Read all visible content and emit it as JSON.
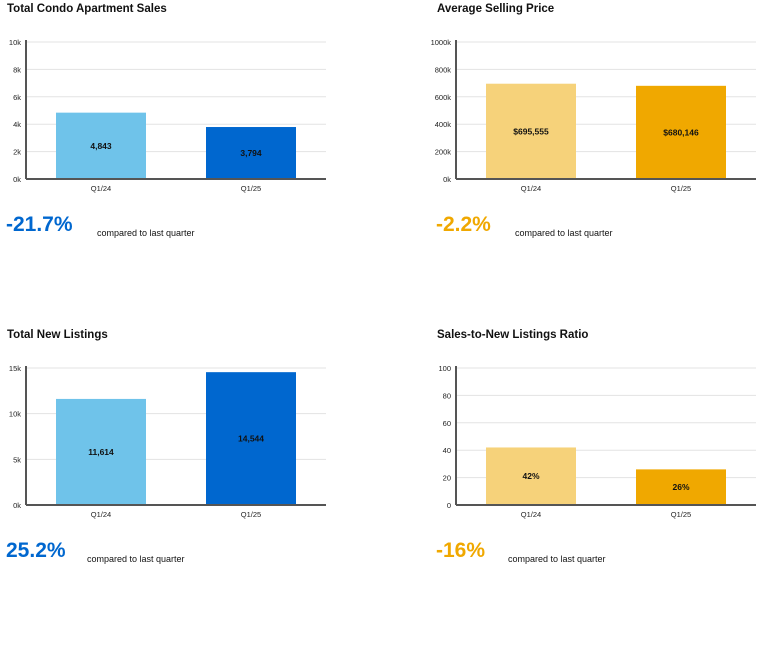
{
  "colors": {
    "blue_light": "#6fc3ea",
    "blue_dark": "#0067cf",
    "gold_light": "#f6d27a",
    "gold_dark": "#f0a800",
    "change_blue": "#0067cf",
    "change_gold": "#f0a800",
    "grid": "#e3e3e3",
    "axis": "#555555"
  },
  "panels": [
    {
      "title": "Total Condo Apartment Sales",
      "change": "-21.7%",
      "compare_text": "compared to last quarter",
      "change_color": "blue"
    },
    {
      "title": "Average Selling Price",
      "change": "-2.2%",
      "compare_text": "compared to last quarter",
      "change_color": "gold"
    },
    {
      "title": "Total New Listings",
      "change": "25.2%",
      "compare_text": "compared to last quarter",
      "change_color": "blue"
    },
    {
      "title": "Sales-to-New Listings Ratio",
      "change": "-16%",
      "compare_text": "compared to last quarter",
      "change_color": "gold"
    }
  ],
  "chart_data": [
    {
      "type": "bar",
      "title": "Total Condo Apartment Sales",
      "categories": [
        "Q1/24",
        "Q1/25"
      ],
      "values": [
        4843,
        3794
      ],
      "value_labels": [
        "4,843",
        "3,794"
      ],
      "ylim": [
        0,
        10000
      ],
      "yticks": [
        0,
        2000,
        4000,
        6000,
        8000,
        10000
      ],
      "ytick_labels": [
        "0k",
        "2k",
        "4k",
        "6k",
        "8k",
        "10k"
      ],
      "bar_colors": [
        "#6fc3ea",
        "#0067cf"
      ],
      "grid": true
    },
    {
      "type": "bar",
      "title": "Average Selling Price",
      "categories": [
        "Q1/24",
        "Q1/25"
      ],
      "values": [
        695555,
        680146
      ],
      "value_labels": [
        "$695,555",
        "$680,146"
      ],
      "ylim": [
        0,
        1000000
      ],
      "yticks": [
        0,
        200000,
        400000,
        600000,
        800000,
        1000000
      ],
      "ytick_labels": [
        "0k",
        "200k",
        "400k",
        "600k",
        "800k",
        "1000k"
      ],
      "bar_colors": [
        "#f6d27a",
        "#f0a800"
      ],
      "grid": true
    },
    {
      "type": "bar",
      "title": "Total New Listings",
      "categories": [
        "Q1/24",
        "Q1/25"
      ],
      "values": [
        11614,
        14544
      ],
      "value_labels": [
        "11,614",
        "14,544"
      ],
      "ylim": [
        0,
        15000
      ],
      "yticks": [
        0,
        5000,
        10000,
        15000
      ],
      "ytick_labels": [
        "0k",
        "5k",
        "10k",
        "15k"
      ],
      "bar_colors": [
        "#6fc3ea",
        "#0067cf"
      ],
      "grid": true
    },
    {
      "type": "bar",
      "title": "Sales-to-New Listings Ratio",
      "categories": [
        "Q1/24",
        "Q1/25"
      ],
      "values": [
        42,
        26
      ],
      "value_labels": [
        "42%",
        "26%"
      ],
      "ylim": [
        0,
        100
      ],
      "yticks": [
        0,
        20,
        40,
        60,
        80,
        100
      ],
      "ytick_labels": [
        "0",
        "20",
        "40",
        "60",
        "80",
        "100"
      ],
      "bar_colors": [
        "#f6d27a",
        "#f0a800"
      ],
      "grid": true
    }
  ]
}
